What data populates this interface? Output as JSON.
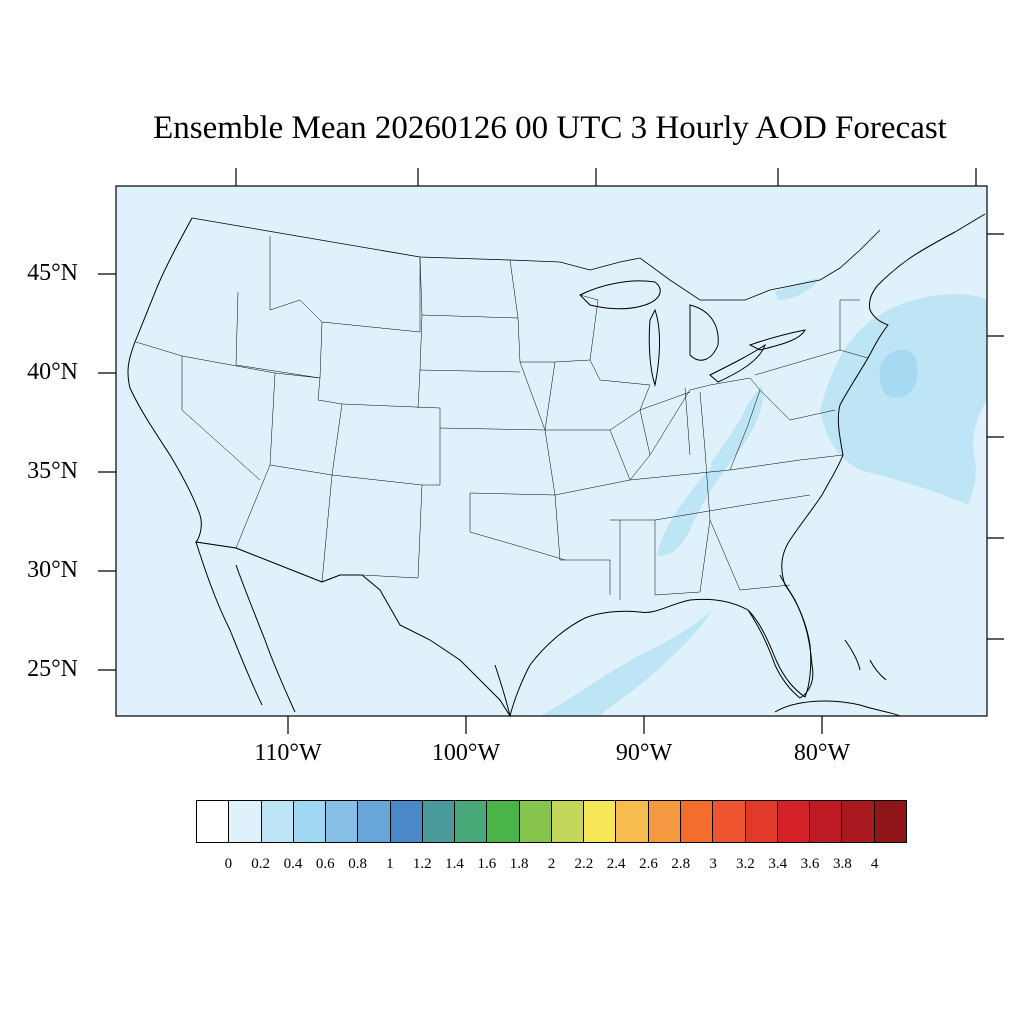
{
  "title": "Ensemble Mean 20260126 00 UTC 3 Hourly AOD Forecast",
  "lat_labels": [
    "45°N",
    "40°N",
    "35°N",
    "30°N",
    "25°N"
  ],
  "lon_labels": [
    "110°W",
    "100°W",
    "90°W",
    "80°W"
  ],
  "map": {
    "background_color": "#dff2fb",
    "plume_color_0_2": "#bde5f6",
    "plume_color_0_4": "#a6daf3",
    "outline_color": "#000000"
  },
  "colorbar": {
    "colors": [
      "#ffffff",
      "#dff2fb",
      "#bde5f6",
      "#a0d8f3",
      "#86bfe6",
      "#68a6da",
      "#4a88c8",
      "#4a9a9c",
      "#48a878",
      "#4ab448",
      "#87c44e",
      "#c4d65a",
      "#f8e659",
      "#f7bc4d",
      "#f59a40",
      "#f36e2e",
      "#ee5430",
      "#e23a28",
      "#d42128",
      "#bd1a24",
      "#a81a1f",
      "#8f1519"
    ],
    "labels": [
      "0",
      "0.2",
      "0.4",
      "0.6",
      "0.8",
      "1",
      "1.2",
      "1.4",
      "1.6",
      "1.8",
      "2",
      "2.2",
      "2.4",
      "2.6",
      "2.8",
      "3",
      "3.2",
      "3.4",
      "3.6",
      "3.8",
      "4"
    ]
  }
}
